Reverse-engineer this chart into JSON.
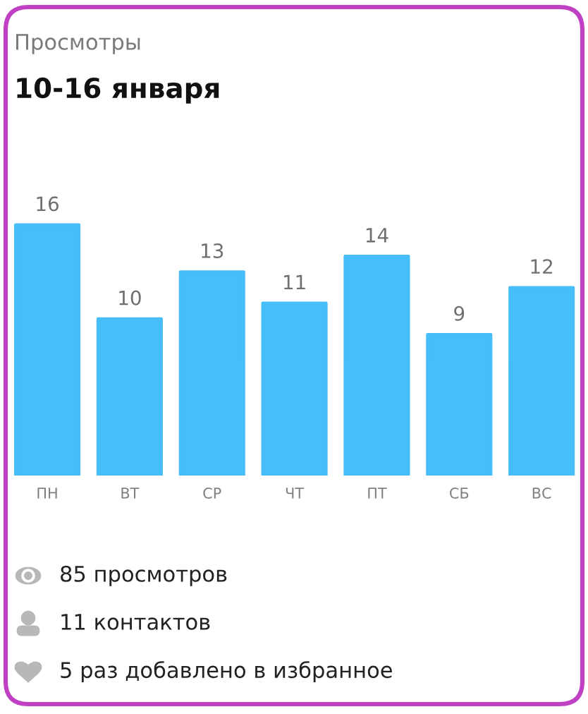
{
  "chart_data": {
    "type": "bar",
    "title": "Просмотры",
    "subtitle": "10-16 января",
    "categories": [
      "ПН",
      "ВТ",
      "СР",
      "ЧТ",
      "ПТ",
      "СБ",
      "ВС"
    ],
    "values": [
      16,
      10,
      13,
      11,
      14,
      9,
      12
    ],
    "color": "#47bdfa",
    "data_labels": true,
    "tick_labels": "x",
    "annotations": [
      "85 просмотров",
      "11 контактов",
      "5 раз добавлено в избранное"
    ]
  }
}
